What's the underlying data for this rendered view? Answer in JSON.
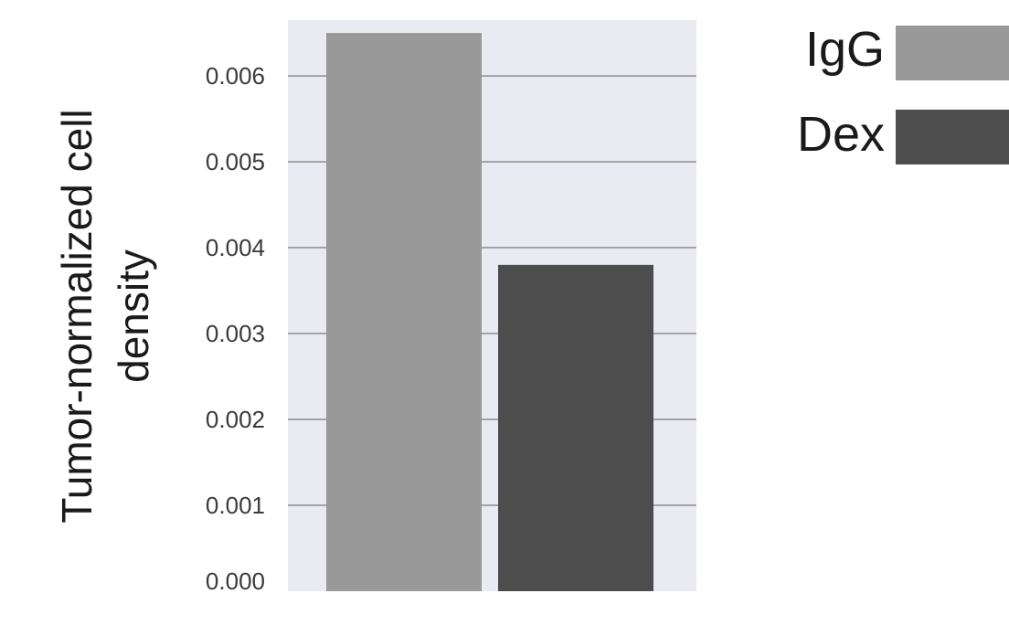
{
  "chart_data": {
    "type": "bar",
    "categories": [
      "IgG",
      "Dex"
    ],
    "values": [
      0.0065,
      0.0038
    ],
    "colors": [
      "#999999",
      "#4d4d4d"
    ],
    "title": "",
    "xlabel": "",
    "ylabel_lines": [
      "Tumor-normalized cell",
      "density"
    ],
    "ylim": [
      0,
      0.00665
    ],
    "yticks": [
      0.0,
      0.001,
      0.002,
      0.003,
      0.004,
      0.005,
      0.006
    ],
    "ytick_labels": [
      "0.000",
      "0.001",
      "0.002",
      "0.003",
      "0.004",
      "0.005",
      "0.006"
    ],
    "plot_background": "#eaeaf2",
    "grid_color": "#8c8c8c",
    "grid": true,
    "legend": {
      "placement": "top-right, outside plot",
      "entries": [
        {
          "label": "IgG",
          "color": "#999999"
        },
        {
          "label": "Dex",
          "color": "#4d4d4d"
        }
      ]
    }
  }
}
